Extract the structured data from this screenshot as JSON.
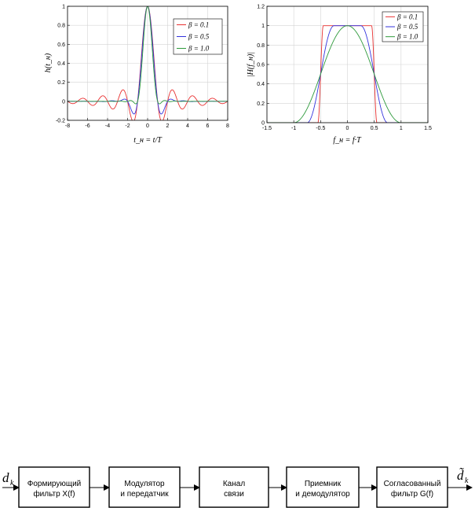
{
  "chart_data": [
    {
      "type": "line",
      "xlabel": "t_н = t/T",
      "ylabel": "h(t_н)",
      "xlim": [
        -8,
        8
      ],
      "ylim": [
        -0.2,
        1
      ],
      "xticks": [
        "-8",
        "-6",
        "-4",
        "-2",
        "0",
        "2",
        "4",
        "6",
        "8"
      ],
      "yticks": [
        "-0.2",
        "0",
        "0.2",
        "0.4",
        "0.6",
        "0.8",
        "1"
      ],
      "grid": true,
      "legend": "top-right",
      "series": [
        {
          "name": "β = 0.1",
          "color": "#e83030",
          "beta": 0.1
        },
        {
          "name": "β = 0.5",
          "color": "#3333dd",
          "beta": 0.5
        },
        {
          "name": "β = 1.0",
          "color": "#2e9a3c",
          "beta": 1.0
        }
      ]
    },
    {
      "type": "line",
      "xlabel": "f_н = f·T",
      "ylabel": "|H(f_н)|",
      "xlim": [
        -1.5,
        1.5
      ],
      "ylim": [
        0,
        1.2
      ],
      "xticks": [
        "-1.5",
        "-1",
        "-0.5",
        "0",
        "0.5",
        "1",
        "1.5"
      ],
      "yticks": [
        "0",
        "0.2",
        "0.4",
        "0.6",
        "0.8",
        "1",
        "1.2"
      ],
      "grid": true,
      "legend": "top-right",
      "series": [
        {
          "name": "β = 0.1",
          "color": "#e83030",
          "beta": 0.1
        },
        {
          "name": "β = 0.5",
          "color": "#3333dd",
          "beta": 0.5
        },
        {
          "name": "β = 1.0",
          "color": "#2e9a3c",
          "beta": 1.0
        }
      ]
    }
  ],
  "block_diagram": {
    "input": "d",
    "input_sub": "k",
    "output": "d̃",
    "output_sub": "k",
    "blocks": [
      {
        "line1": "Формирующий",
        "line2": "фильтр X(f)"
      },
      {
        "line1": "Модулятор",
        "line2": "и передатчик"
      },
      {
        "line1": "Канал",
        "line2": "связи"
      },
      {
        "line1": "Приемник",
        "line2": "и демодулятор"
      },
      {
        "line1": "Согласованный",
        "line2": "фильтр G(f)"
      }
    ]
  }
}
